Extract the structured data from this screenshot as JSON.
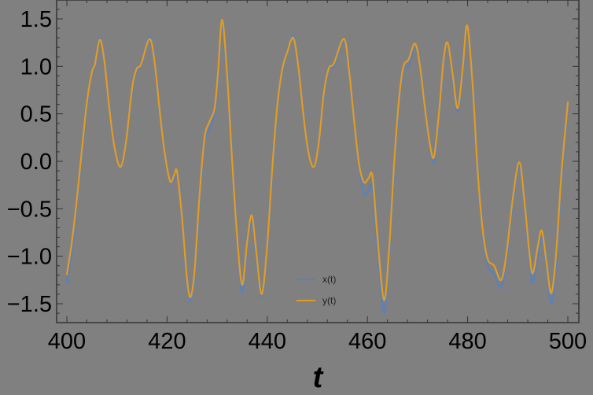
{
  "chart_data": {
    "type": "line",
    "title": "",
    "xlabel": "t",
    "ylabel": "",
    "xlim": [
      398,
      502
    ],
    "ylim": [
      -1.7,
      1.7
    ],
    "x_ticks": [
      400,
      420,
      440,
      460,
      480,
      500
    ],
    "x_tick_labels": [
      "400",
      "420",
      "440",
      "460",
      "480",
      "500"
    ],
    "y_ticks": [
      -1.5,
      -1.0,
      -0.5,
      0.0,
      0.5,
      1.0,
      1.5
    ],
    "y_tick_labels": [
      "-1.5",
      "-1.0",
      "-0.5",
      "0.0",
      "0.5",
      "1.0",
      "1.5"
    ],
    "grid": false,
    "frame": true,
    "background": "#808080",
    "legend": {
      "position": "inside-bottom-center",
      "entries": [
        "x(t)",
        "y(t)"
      ]
    },
    "series": [
      {
        "name": "x(t)",
        "color": "#5E81B5",
        "points": [
          [
            400.0,
            -1.28
          ],
          [
            401.0,
            -0.95
          ],
          [
            402.0,
            -0.45
          ],
          [
            403.0,
            0.1
          ],
          [
            404.0,
            0.6
          ],
          [
            405.0,
            0.93
          ],
          [
            405.6,
            1.0
          ],
          [
            406.6,
            1.3
          ],
          [
            407.5,
            1.05
          ],
          [
            408.5,
            0.55
          ],
          [
            409.5,
            0.15
          ],
          [
            410.7,
            -0.07
          ],
          [
            411.8,
            0.2
          ],
          [
            413.0,
            0.75
          ],
          [
            413.9,
            0.96
          ],
          [
            414.8,
            1.0
          ],
          [
            416.5,
            1.32
          ],
          [
            417.5,
            1.05
          ],
          [
            418.5,
            0.55
          ],
          [
            419.5,
            0.1
          ],
          [
            420.6,
            -0.22
          ],
          [
            421.4,
            -0.18
          ],
          [
            422.0,
            -0.12
          ],
          [
            423.0,
            -0.6
          ],
          [
            424.0,
            -1.3
          ],
          [
            424.7,
            -1.47
          ],
          [
            425.5,
            -1.2
          ],
          [
            426.5,
            -0.4
          ],
          [
            427.5,
            0.2
          ],
          [
            428.5,
            0.35
          ],
          [
            429.5,
            0.5
          ],
          [
            430.2,
            0.9
          ],
          [
            431.0,
            1.42
          ],
          [
            432.0,
            0.9
          ],
          [
            433.0,
            0.0
          ],
          [
            434.0,
            -0.8
          ],
          [
            435.0,
            -1.38
          ],
          [
            436.0,
            -0.9
          ],
          [
            436.9,
            -0.62
          ],
          [
            437.8,
            -1.0
          ],
          [
            438.9,
            -1.43
          ],
          [
            440.0,
            -0.9
          ],
          [
            441.0,
            -0.1
          ],
          [
            442.0,
            0.55
          ],
          [
            443.0,
            0.95
          ],
          [
            444.0,
            1.15
          ],
          [
            445.2,
            1.32
          ],
          [
            446.2,
            1.0
          ],
          [
            447.2,
            0.5
          ],
          [
            448.2,
            0.1
          ],
          [
            449.3,
            -0.06
          ],
          [
            450.3,
            0.2
          ],
          [
            451.3,
            0.7
          ],
          [
            452.3,
            0.97
          ],
          [
            453.3,
            1.0
          ],
          [
            455.3,
            1.26
          ],
          [
            456.3,
            0.95
          ],
          [
            457.3,
            0.45
          ],
          [
            458.3,
            -0.05
          ],
          [
            459.3,
            -0.34
          ],
          [
            460.2,
            -0.3
          ],
          [
            461.0,
            -0.28
          ],
          [
            462.0,
            -0.9
          ],
          [
            463.3,
            -1.6
          ],
          [
            464.3,
            -1.0
          ],
          [
            465.3,
            -0.1
          ],
          [
            466.3,
            0.6
          ],
          [
            467.2,
            0.95
          ],
          [
            468.2,
            1.0
          ],
          [
            469.5,
            1.2
          ],
          [
            470.5,
            1.0
          ],
          [
            471.5,
            0.55
          ],
          [
            472.5,
            0.15
          ],
          [
            473.3,
            0.0
          ],
          [
            474.3,
            0.5
          ],
          [
            475.2,
            1.05
          ],
          [
            476.0,
            1.24
          ],
          [
            477.0,
            0.9
          ],
          [
            478.0,
            0.52
          ],
          [
            479.0,
            0.95
          ],
          [
            479.9,
            1.42
          ],
          [
            481.0,
            0.8
          ],
          [
            482.0,
            -0.1
          ],
          [
            483.0,
            -0.75
          ],
          [
            484.0,
            -1.1
          ],
          [
            485.3,
            -1.18
          ],
          [
            486.7,
            -1.33
          ],
          [
            487.8,
            -1.0
          ],
          [
            489.0,
            -0.45
          ],
          [
            490.3,
            -0.05
          ],
          [
            491.3,
            -0.4
          ],
          [
            492.3,
            -1.0
          ],
          [
            493.0,
            -1.28
          ],
          [
            494.0,
            -1.0
          ],
          [
            494.8,
            -0.8
          ],
          [
            495.7,
            -1.1
          ],
          [
            496.7,
            -1.5
          ],
          [
            497.7,
            -1.05
          ],
          [
            498.7,
            -0.2
          ],
          [
            500.0,
            0.6
          ]
        ]
      },
      {
        "name": "y(t)",
        "color": "#E19C24",
        "points": [
          [
            400.0,
            -1.19
          ],
          [
            401.0,
            -0.85
          ],
          [
            402.0,
            -0.4
          ],
          [
            403.0,
            0.12
          ],
          [
            404.0,
            0.62
          ],
          [
            405.0,
            0.94
          ],
          [
            405.6,
            1.02
          ],
          [
            406.6,
            1.28
          ],
          [
            407.5,
            1.05
          ],
          [
            408.5,
            0.55
          ],
          [
            409.5,
            0.15
          ],
          [
            410.7,
            -0.06
          ],
          [
            411.8,
            0.2
          ],
          [
            413.0,
            0.76
          ],
          [
            413.9,
            0.97
          ],
          [
            414.8,
            1.02
          ],
          [
            416.5,
            1.29
          ],
          [
            417.5,
            1.05
          ],
          [
            418.5,
            0.55
          ],
          [
            419.5,
            0.1
          ],
          [
            420.6,
            -0.21
          ],
          [
            421.4,
            -0.15
          ],
          [
            422.0,
            -0.11
          ],
          [
            423.0,
            -0.6
          ],
          [
            424.0,
            -1.25
          ],
          [
            424.7,
            -1.43
          ],
          [
            425.5,
            -1.15
          ],
          [
            426.5,
            -0.35
          ],
          [
            427.5,
            0.25
          ],
          [
            428.5,
            0.42
          ],
          [
            429.5,
            0.56
          ],
          [
            430.2,
            0.95
          ],
          [
            431.0,
            1.49
          ],
          [
            432.0,
            0.9
          ],
          [
            433.0,
            0.0
          ],
          [
            434.0,
            -0.8
          ],
          [
            435.0,
            -1.3
          ],
          [
            436.0,
            -0.85
          ],
          [
            436.9,
            -0.57
          ],
          [
            437.8,
            -0.95
          ],
          [
            438.9,
            -1.4
          ],
          [
            440.0,
            -0.88
          ],
          [
            441.0,
            -0.08
          ],
          [
            442.0,
            0.58
          ],
          [
            443.0,
            0.97
          ],
          [
            444.0,
            1.15
          ],
          [
            445.2,
            1.3
          ],
          [
            446.2,
            1.0
          ],
          [
            447.2,
            0.5
          ],
          [
            448.2,
            0.1
          ],
          [
            449.3,
            -0.06
          ],
          [
            450.3,
            0.2
          ],
          [
            451.3,
            0.72
          ],
          [
            452.3,
            0.98
          ],
          [
            453.3,
            1.03
          ],
          [
            455.3,
            1.29
          ],
          [
            456.3,
            0.97
          ],
          [
            457.3,
            0.45
          ],
          [
            458.3,
            -0.02
          ],
          [
            459.3,
            -0.22
          ],
          [
            460.2,
            -0.18
          ],
          [
            461.0,
            -0.16
          ],
          [
            462.0,
            -0.8
          ],
          [
            463.3,
            -1.46
          ],
          [
            464.3,
            -0.95
          ],
          [
            465.3,
            -0.05
          ],
          [
            466.3,
            0.65
          ],
          [
            467.2,
            1.0
          ],
          [
            468.2,
            1.07
          ],
          [
            469.5,
            1.24
          ],
          [
            470.5,
            1.0
          ],
          [
            471.5,
            0.55
          ],
          [
            472.5,
            0.17
          ],
          [
            473.3,
            0.05
          ],
          [
            474.3,
            0.52
          ],
          [
            475.2,
            1.07
          ],
          [
            476.0,
            1.25
          ],
          [
            477.0,
            0.92
          ],
          [
            478.0,
            0.56
          ],
          [
            479.0,
            0.97
          ],
          [
            479.9,
            1.43
          ],
          [
            481.0,
            0.8
          ],
          [
            482.0,
            -0.1
          ],
          [
            483.0,
            -0.72
          ],
          [
            484.0,
            -1.03
          ],
          [
            485.3,
            -1.1
          ],
          [
            486.7,
            -1.25
          ],
          [
            487.8,
            -0.95
          ],
          [
            489.0,
            -0.4
          ],
          [
            490.3,
            -0.01
          ],
          [
            491.3,
            -0.4
          ],
          [
            492.3,
            -0.95
          ],
          [
            493.0,
            -1.18
          ],
          [
            494.0,
            -0.9
          ],
          [
            494.8,
            -0.73
          ],
          [
            495.7,
            -1.05
          ],
          [
            496.7,
            -1.39
          ],
          [
            497.7,
            -0.95
          ],
          [
            498.7,
            -0.15
          ],
          [
            500.0,
            0.62
          ]
        ]
      }
    ]
  }
}
